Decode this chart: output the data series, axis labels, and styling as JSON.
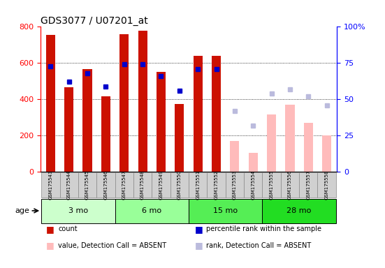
{
  "title": "GDS3077 / U07201_at",
  "samples": [
    "GSM175543",
    "GSM175544",
    "GSM175545",
    "GSM175546",
    "GSM175547",
    "GSM175548",
    "GSM175549",
    "GSM175550",
    "GSM175551",
    "GSM175552",
    "GSM175553",
    "GSM175554",
    "GSM175555",
    "GSM175556",
    "GSM175557",
    "GSM175558"
  ],
  "count": [
    755,
    465,
    565,
    415,
    760,
    780,
    550,
    375,
    640,
    640,
    null,
    null,
    null,
    null,
    null,
    null
  ],
  "percentile_rank": [
    73,
    62,
    68,
    59,
    74,
    74,
    66,
    56,
    71,
    71,
    null,
    null,
    null,
    null,
    null,
    null
  ],
  "value_absent": [
    null,
    null,
    null,
    null,
    null,
    null,
    null,
    null,
    null,
    null,
    170,
    105,
    315,
    370,
    270,
    200
  ],
  "rank_absent": [
    null,
    null,
    null,
    null,
    null,
    null,
    null,
    null,
    null,
    null,
    42,
    32,
    54,
    57,
    52,
    46
  ],
  "age_groups": [
    {
      "label": "3 mo",
      "start": 0,
      "end": 3,
      "color": "#ccffcc"
    },
    {
      "label": "6 mo",
      "start": 4,
      "end": 7,
      "color": "#99ff99"
    },
    {
      "label": "15 mo",
      "start": 8,
      "end": 11,
      "color": "#66ee66"
    },
    {
      "label": "28 mo",
      "start": 12,
      "end": 15,
      "color": "#33dd33"
    }
  ],
  "ylim_left": [
    0,
    800
  ],
  "ylim_right": [
    0,
    100
  ],
  "yticks_left": [
    0,
    200,
    400,
    600,
    800
  ],
  "yticks_right": [
    0,
    25,
    50,
    75,
    100
  ],
  "ytick_labels_right": [
    "0",
    "25",
    "50",
    "75",
    "100%"
  ],
  "color_count": "#cc1100",
  "color_rank": "#0000cc",
  "color_value_absent": "#ffbbbb",
  "color_rank_absent": "#bbbbdd",
  "background_color": "#ffffff",
  "xtick_bg": "#d0d0d0",
  "bar_width": 0.5,
  "marker_size": 5
}
